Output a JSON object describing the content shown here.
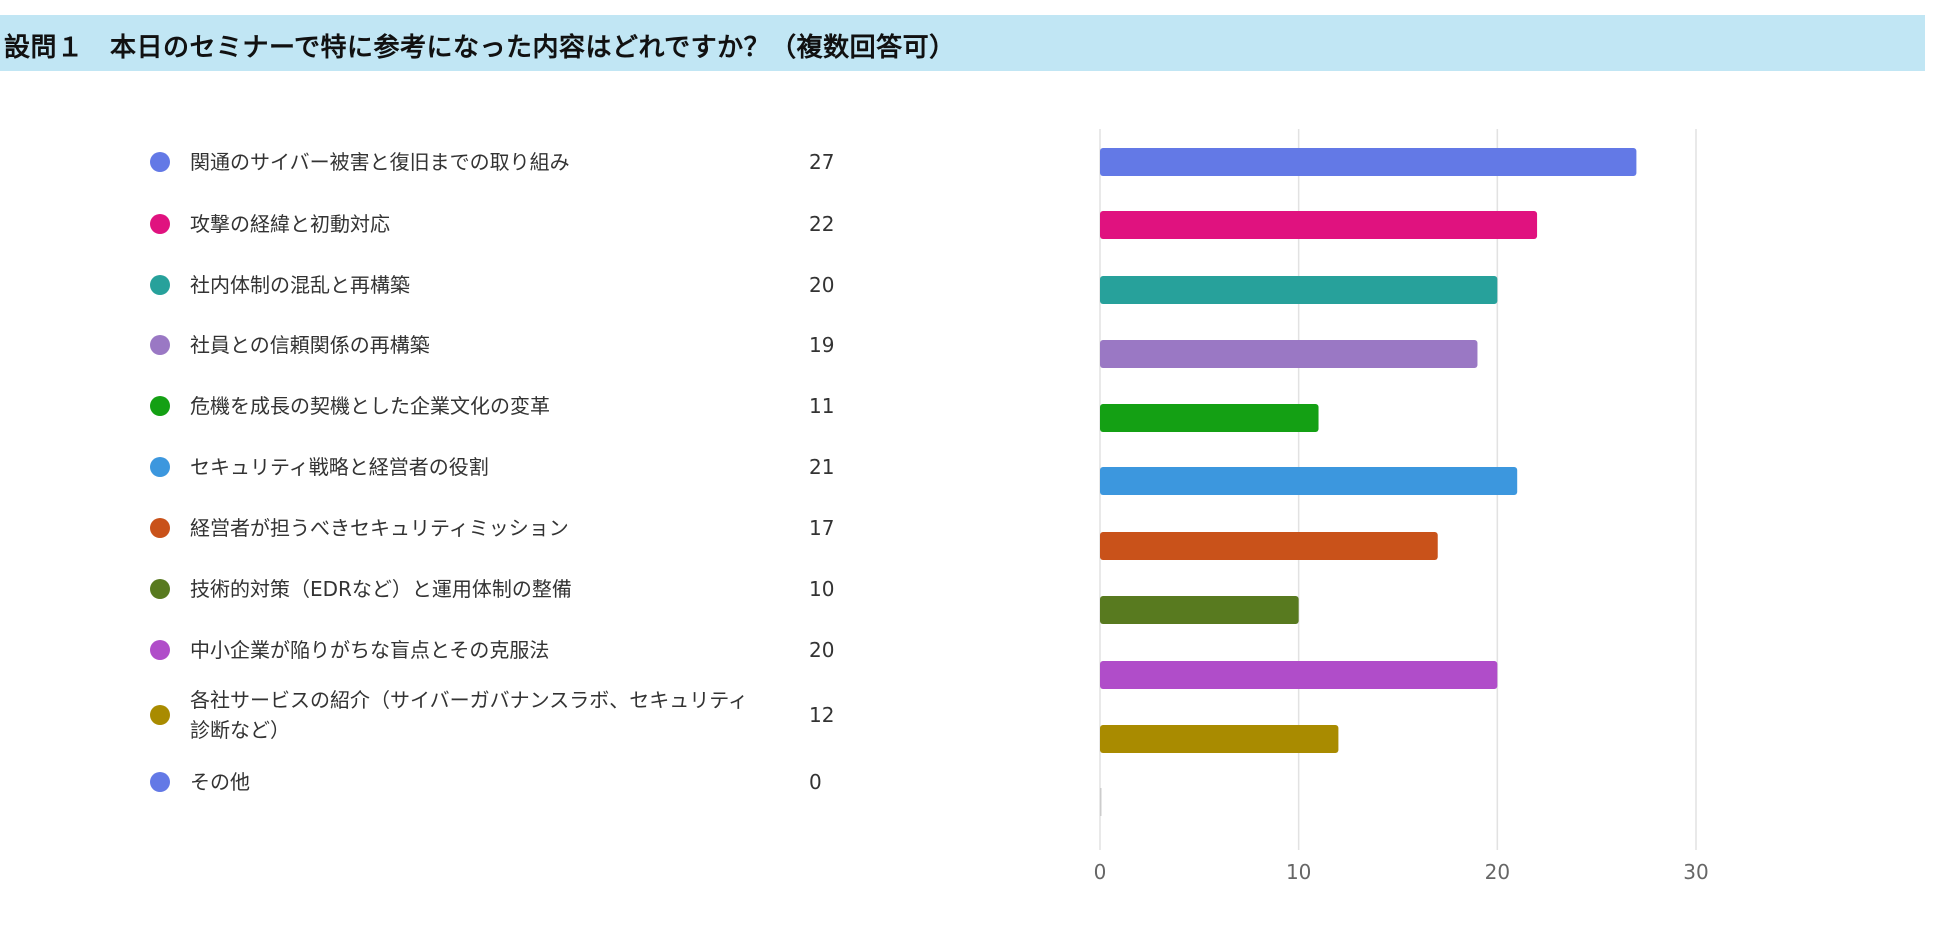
{
  "header": {
    "title": "設問１　本日のセミナーで特に参考になった内容はどれですか？（複数回答可）"
  },
  "chart_data": {
    "type": "bar",
    "orientation": "horizontal",
    "title": "設問１　本日のセミナーで特に参考になった内容はどれですか？（複数回答可）",
    "categories": [
      "関通のサイバー被害と復旧までの取り組み",
      "攻撃の経緯と初動対応",
      "社内体制の混乱と再構築",
      "社員との信頼関係の再構築",
      "危機を成長の契機とした企業文化の変革",
      "セキュリティ戦略と経営者の役割",
      "経営者が担うべきセキュリティミッション",
      "技術的対策（EDRなど）と運用体制の整備",
      "中小企業が陥りがちな盲点とその克服法",
      "各社サービスの紹介（サイバーガバナンスラボ、セキュリティ診断など）",
      "その他"
    ],
    "values": [
      27,
      22,
      20,
      19,
      11,
      21,
      17,
      10,
      20,
      12,
      0
    ],
    "colors": [
      "#6379e6",
      "#e0127f",
      "#27a19b",
      "#9a78c4",
      "#14a014",
      "#3c97de",
      "#c9521a",
      "#587a1f",
      "#b04dc9",
      "#a98b00",
      "#6379e6"
    ],
    "xlim": [
      0,
      30
    ],
    "xticks": [
      "0",
      "10",
      "20",
      "30"
    ],
    "grid": true,
    "legend": "left"
  }
}
